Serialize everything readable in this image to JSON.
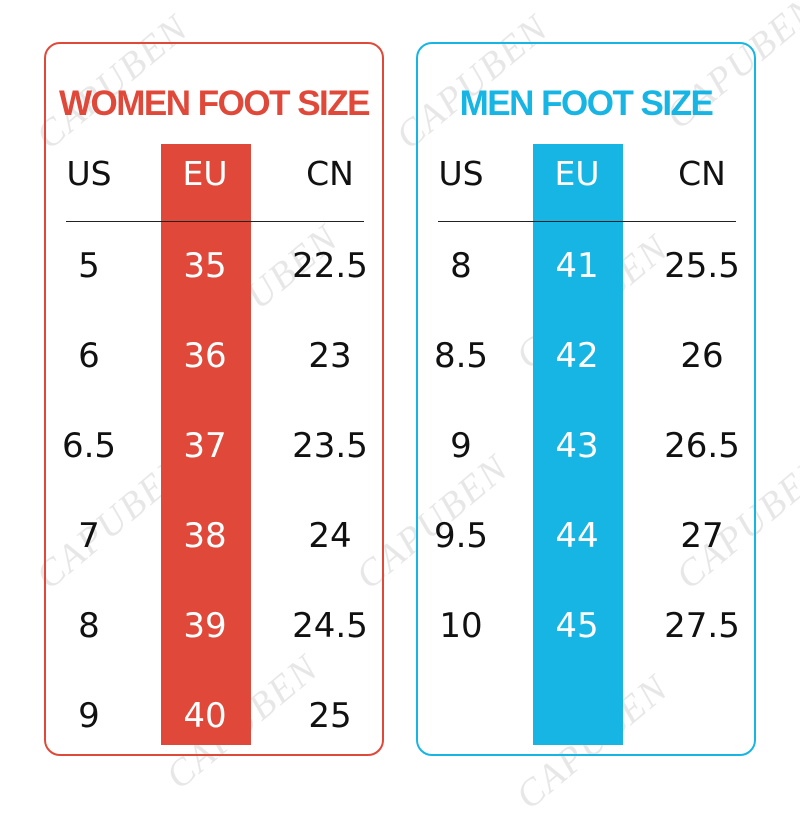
{
  "watermark": "CAPUBEN",
  "women": {
    "title": "WOMEN FOOT SIZE",
    "headers": {
      "us": "US",
      "eu": "EU",
      "cn": "CN"
    },
    "rows": [
      {
        "us": "5",
        "eu": "35",
        "cn": "22.5"
      },
      {
        "us": "6",
        "eu": "36",
        "cn": "23"
      },
      {
        "us": "6.5",
        "eu": "37",
        "cn": "23.5"
      },
      {
        "us": "7",
        "eu": "38",
        "cn": "24"
      },
      {
        "us": "8",
        "eu": "39",
        "cn": "24.5"
      },
      {
        "us": "9",
        "eu": "40",
        "cn": "25"
      }
    ]
  },
  "men": {
    "title": "MEN FOOT SIZE",
    "headers": {
      "us": "US",
      "eu": "EU",
      "cn": "CN"
    },
    "rows": [
      {
        "us": "8",
        "eu": "41",
        "cn": "25.5"
      },
      {
        "us": "8.5",
        "eu": "42",
        "cn": "26"
      },
      {
        "us": "9",
        "eu": "43",
        "cn": "26.5"
      },
      {
        "us": "9.5",
        "eu": "44",
        "cn": "27"
      },
      {
        "us": "10",
        "eu": "45",
        "cn": "27.5"
      }
    ]
  },
  "colors": {
    "women_accent": "#e0493a",
    "men_accent": "#17b5e3"
  }
}
